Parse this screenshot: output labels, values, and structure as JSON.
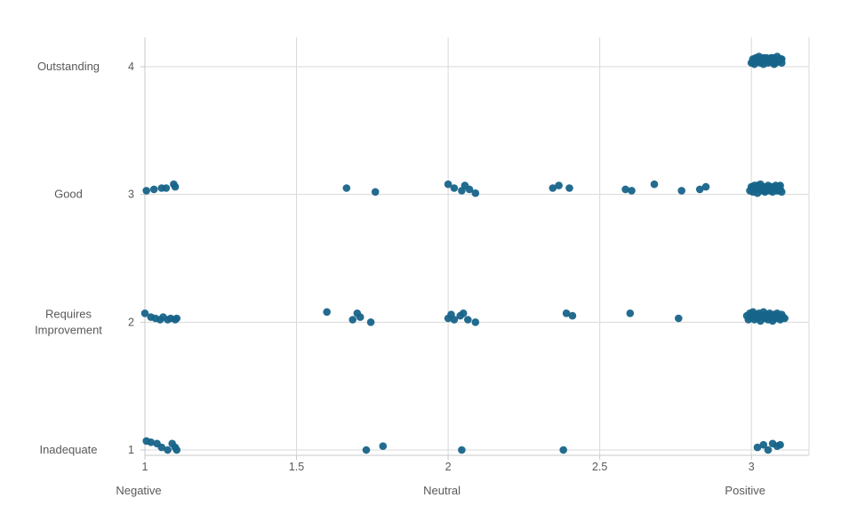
{
  "chart_data": {
    "type": "scatter",
    "title": "",
    "point_color": "#17648a",
    "grid_color": "#d9d9d9",
    "axis_color": "#c9c9c9",
    "text_color": "#595959",
    "x_axis": {
      "lim": [
        1,
        3.19
      ],
      "ticks": [
        1,
        1.5,
        2,
        2.5,
        3
      ],
      "tick_labels": [
        "1",
        "1.5",
        "2",
        "2.5",
        "3"
      ],
      "category_labels": [
        {
          "value": 1,
          "label": "Negative"
        },
        {
          "value": 2,
          "label": "Neutral"
        },
        {
          "value": 3,
          "label": "Positive"
        }
      ]
    },
    "y_axis": {
      "lim": [
        0.958,
        4.23
      ],
      "ticks": [
        1,
        2,
        3,
        4
      ],
      "tick_labels": [
        "1",
        "2",
        "3",
        "4"
      ],
      "category_labels": [
        {
          "value": 4,
          "label": "Outstanding"
        },
        {
          "value": 3,
          "label": "Good"
        },
        {
          "value": 2,
          "label": "Requires\nImprovement"
        },
        {
          "value": 1,
          "label": "Inadequate"
        }
      ]
    },
    "points": [
      [
        3.0,
        4.03
      ],
      [
        3.005,
        4.06
      ],
      [
        3.01,
        4.02
      ],
      [
        3.015,
        4.07
      ],
      [
        3.02,
        4.04
      ],
      [
        3.025,
        4.08
      ],
      [
        3.03,
        4.03
      ],
      [
        3.035,
        4.06
      ],
      [
        3.04,
        4.02
      ],
      [
        3.045,
        4.05
      ],
      [
        3.05,
        4.07
      ],
      [
        3.055,
        4.03
      ],
      [
        3.06,
        4.06
      ],
      [
        3.065,
        4.04
      ],
      [
        3.07,
        4.07
      ],
      [
        3.075,
        4.02
      ],
      [
        3.08,
        4.05
      ],
      [
        3.085,
        4.08
      ],
      [
        3.09,
        4.04
      ],
      [
        3.095,
        4.06
      ],
      [
        3.1,
        4.03
      ],
      [
        3.005,
        4.04
      ],
      [
        3.02,
        4.06
      ],
      [
        3.035,
        4.04
      ],
      [
        3.05,
        4.05
      ],
      [
        3.065,
        4.07
      ],
      [
        3.08,
        4.03
      ],
      [
        3.095,
        4.05
      ],
      [
        3.01,
        4.05
      ],
      [
        3.04,
        4.07
      ],
      [
        3.07,
        4.04
      ],
      [
        3.1,
        4.06
      ],
      [
        1.005,
        3.03
      ],
      [
        1.03,
        3.04
      ],
      [
        1.055,
        3.05
      ],
      [
        1.07,
        3.05
      ],
      [
        1.095,
        3.08
      ],
      [
        1.1,
        3.06
      ],
      [
        1.665,
        3.05
      ],
      [
        1.76,
        3.02
      ],
      [
        2.0,
        3.08
      ],
      [
        2.02,
        3.05
      ],
      [
        2.045,
        3.03
      ],
      [
        2.055,
        3.07
      ],
      [
        2.07,
        3.04
      ],
      [
        2.09,
        3.01
      ],
      [
        2.345,
        3.05
      ],
      [
        2.365,
        3.07
      ],
      [
        2.4,
        3.05
      ],
      [
        2.585,
        3.04
      ],
      [
        2.605,
        3.03
      ],
      [
        2.68,
        3.08
      ],
      [
        2.77,
        3.03
      ],
      [
        2.83,
        3.04
      ],
      [
        2.85,
        3.06
      ],
      [
        2.995,
        3.03
      ],
      [
        3.0,
        3.06
      ],
      [
        3.005,
        3.02
      ],
      [
        3.01,
        3.07
      ],
      [
        3.015,
        3.04
      ],
      [
        3.02,
        3.01
      ],
      [
        3.025,
        3.05
      ],
      [
        3.03,
        3.08
      ],
      [
        3.035,
        3.03
      ],
      [
        3.04,
        3.06
      ],
      [
        3.045,
        3.02
      ],
      [
        3.05,
        3.05
      ],
      [
        3.055,
        3.07
      ],
      [
        3.06,
        3.03
      ],
      [
        3.065,
        3.06
      ],
      [
        3.07,
        3.02
      ],
      [
        3.075,
        3.05
      ],
      [
        3.08,
        3.07
      ],
      [
        3.085,
        3.03
      ],
      [
        3.09,
        3.06
      ],
      [
        3.095,
        3.04
      ],
      [
        3.1,
        3.02
      ],
      [
        3.005,
        3.05
      ],
      [
        3.02,
        3.07
      ],
      [
        3.035,
        3.05
      ],
      [
        3.05,
        3.03
      ],
      [
        3.065,
        3.04
      ],
      [
        3.08,
        3.05
      ],
      [
        3.095,
        3.07
      ],
      [
        3.03,
        3.05
      ],
      [
        3.06,
        3.05
      ],
      [
        3.09,
        3.03
      ],
      [
        1.0,
        2.07
      ],
      [
        1.02,
        2.04
      ],
      [
        1.035,
        2.03
      ],
      [
        1.05,
        2.02
      ],
      [
        1.06,
        2.04
      ],
      [
        1.075,
        2.02
      ],
      [
        1.085,
        2.03
      ],
      [
        1.1,
        2.02
      ],
      [
        1.105,
        2.03
      ],
      [
        1.6,
        2.08
      ],
      [
        1.685,
        2.02
      ],
      [
        1.7,
        2.07
      ],
      [
        1.71,
        2.04
      ],
      [
        1.745,
        2.0
      ],
      [
        2.0,
        2.03
      ],
      [
        2.01,
        2.06
      ],
      [
        2.02,
        2.02
      ],
      [
        2.04,
        2.05
      ],
      [
        2.05,
        2.07
      ],
      [
        2.065,
        2.02
      ],
      [
        2.09,
        2.0
      ],
      [
        2.39,
        2.07
      ],
      [
        2.41,
        2.05
      ],
      [
        2.6,
        2.07
      ],
      [
        2.76,
        2.03
      ],
      [
        2.985,
        2.05
      ],
      [
        2.99,
        2.02
      ],
      [
        2.995,
        2.07
      ],
      [
        3.0,
        2.04
      ],
      [
        3.005,
        2.08
      ],
      [
        3.01,
        2.02
      ],
      [
        3.015,
        2.06
      ],
      [
        3.02,
        2.03
      ],
      [
        3.025,
        2.07
      ],
      [
        3.03,
        2.01
      ],
      [
        3.035,
        2.05
      ],
      [
        3.04,
        2.08
      ],
      [
        3.045,
        2.03
      ],
      [
        3.05,
        2.06
      ],
      [
        3.055,
        2.02
      ],
      [
        3.06,
        2.07
      ],
      [
        3.065,
        2.04
      ],
      [
        3.07,
        2.01
      ],
      [
        3.075,
        2.06
      ],
      [
        3.08,
        2.03
      ],
      [
        3.085,
        2.07
      ],
      [
        3.09,
        2.05
      ],
      [
        3.095,
        2.02
      ],
      [
        3.1,
        2.06
      ],
      [
        3.105,
        2.04
      ],
      [
        3.11,
        2.03
      ],
      [
        3.0,
        2.06
      ],
      [
        3.02,
        2.05
      ],
      [
        3.04,
        2.04
      ],
      [
        3.06,
        2.05
      ],
      [
        3.08,
        2.05
      ],
      [
        3.1,
        2.03
      ],
      [
        1.005,
        1.07
      ],
      [
        1.02,
        1.06
      ],
      [
        1.04,
        1.05
      ],
      [
        1.055,
        1.02
      ],
      [
        1.075,
        1.0
      ],
      [
        1.09,
        1.05
      ],
      [
        1.1,
        1.02
      ],
      [
        1.105,
        1.0
      ],
      [
        1.73,
        1.0
      ],
      [
        1.785,
        1.03
      ],
      [
        2.045,
        1.0
      ],
      [
        2.38,
        1.0
      ],
      [
        3.02,
        1.02
      ],
      [
        3.04,
        1.04
      ],
      [
        3.055,
        1.0
      ],
      [
        3.07,
        1.05
      ],
      [
        3.085,
        1.03
      ],
      [
        3.095,
        1.04
      ]
    ]
  }
}
